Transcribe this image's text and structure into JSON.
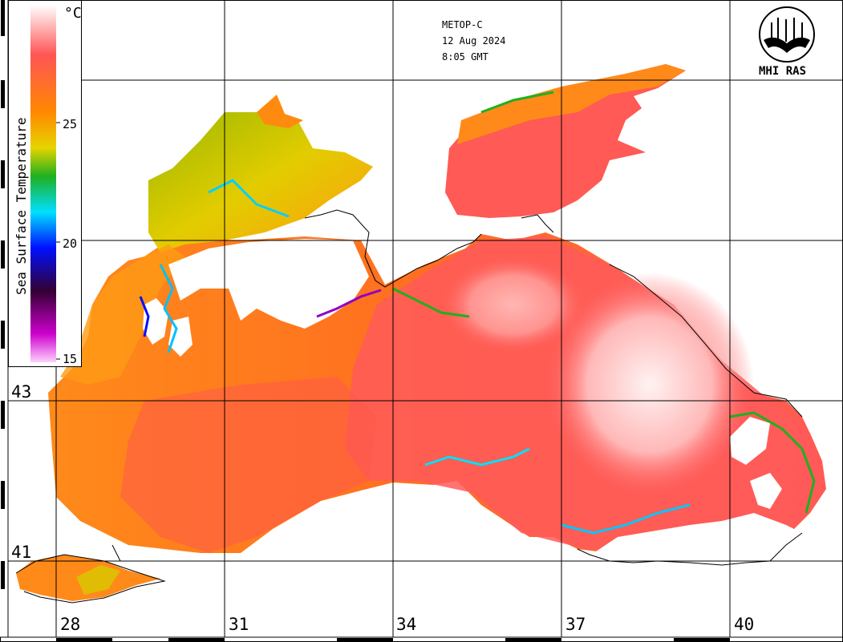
{
  "header": {
    "satellite": "METOP-C",
    "date": "12 Aug 2024",
    "time": "8:05 GMT"
  },
  "logo": {
    "text": "MHI RAS"
  },
  "colorbar": {
    "title": "Sea Surface Temperature",
    "unit": "°C",
    "ticks": [
      "25",
      "20",
      "15"
    ],
    "stops": [
      "#ffffff",
      "#ff5555",
      "#ff8800",
      "#e6d400",
      "#1fb01f",
      "#00e0ff",
      "#0010ff",
      "#330033",
      "#cc00cc",
      "#ffd0ff"
    ]
  },
  "axes": {
    "lon_labels": [
      "28",
      "31",
      "34",
      "37",
      "40"
    ],
    "lat_labels": [
      "43",
      "41"
    ]
  },
  "colors": {
    "warm": "#ff5a55",
    "orange": "#ff8a1a",
    "yellow": "#e0d000",
    "land": "#ffffff"
  }
}
